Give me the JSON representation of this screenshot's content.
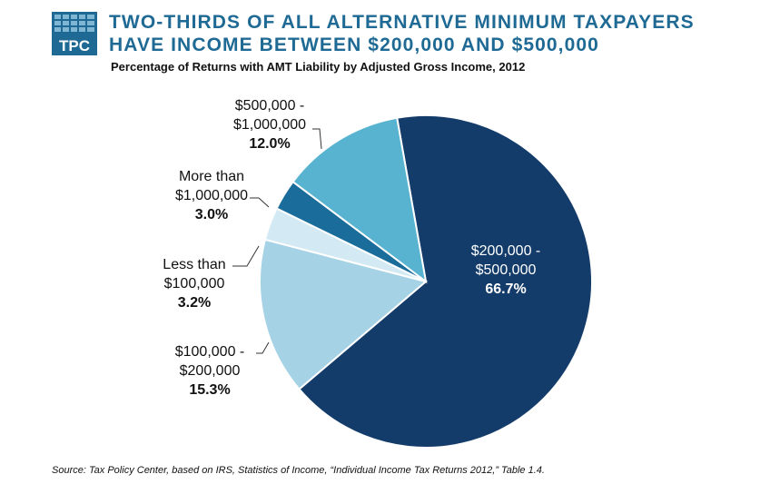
{
  "logo": {
    "text": "TPC",
    "color": "#1f6a94"
  },
  "title_lines": [
    "TWO-THIRDS OF ALL ALTERNATIVE MINIMUM TAXPAYERS",
    "HAVE INCOME BETWEEN $200,000 AND $500,000"
  ],
  "subtitle": "Percentage of Returns with AMT Liability by Adjusted Gross Income, 2012",
  "source": "Source: Tax Policy Center,  based on IRS, Statistics  of Income, “Individual Income Tax Returns 2012,” Table 1.4.",
  "chart_data": {
    "type": "pie",
    "title": "Percentage of Returns with AMT Liability by Adjusted Gross Income, 2012",
    "slices": [
      {
        "label_lines": [
          "$200,000 -",
          "$500,000"
        ],
        "value": 66.7,
        "value_text": "66.7%",
        "color": "#143c6a"
      },
      {
        "label_lines": [
          "$100,000 -",
          "$200,000"
        ],
        "value": 15.3,
        "value_text": "15.3%",
        "color": "#a6d2e6"
      },
      {
        "label_lines": [
          "Less than",
          "$100,000"
        ],
        "value": 3.2,
        "value_text": "3.2%",
        "color": "#d3eaf4"
      },
      {
        "label_lines": [
          "More than",
          "$1,000,000"
        ],
        "value": 3.0,
        "value_text": "3.0%",
        "color": "#1a6d9a"
      },
      {
        "label_lines": [
          "$500,000 -",
          "$1,000,000"
        ],
        "value": 12.0,
        "value_text": "12.0%",
        "color": "#57b3d0"
      }
    ]
  }
}
